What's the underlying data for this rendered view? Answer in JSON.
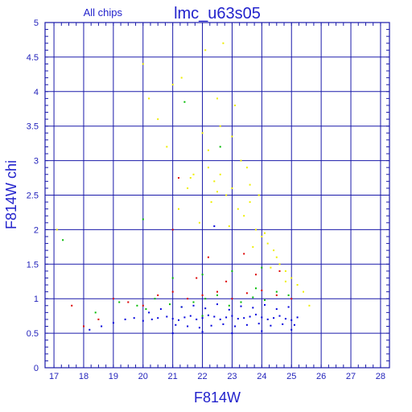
{
  "chart_data": {
    "type": "scatter",
    "title": "lmc_u63s05",
    "subtitle": "All chips",
    "xlabel": "F814W",
    "ylabel": "F814W chi",
    "xlim": [
      16.7,
      28.3
    ],
    "ylim": [
      0,
      5
    ],
    "xticks": [
      "17",
      "18",
      "19",
      "20",
      "21",
      "22",
      "23",
      "24",
      "25",
      "26",
      "27",
      "28"
    ],
    "yticks": [
      "0",
      "0.5",
      "1",
      "1.5",
      "2",
      "2.5",
      "3",
      "3.5",
      "4",
      "4.5",
      "5"
    ],
    "grid": true,
    "colors": {
      "grid": "#1a1aaa",
      "frame": "#1a1aaa",
      "text": "#2222cc",
      "blue": "#0000dd",
      "green": "#00bb00",
      "red": "#dd0000",
      "yellow": "#eeee00"
    },
    "series": [
      {
        "color_key": "blue",
        "x": [
          18.2,
          18.6,
          19.0,
          19.4,
          19.7,
          20.0,
          20.3,
          20.5,
          20.8,
          21.0,
          21.2,
          21.4,
          21.6,
          21.8,
          22.0,
          22.2,
          22.4,
          22.6,
          22.8,
          23.0,
          23.2,
          23.4,
          23.6,
          23.8,
          24.0,
          24.2,
          24.4,
          24.6,
          24.8,
          25.0,
          25.2,
          21.1,
          21.5,
          21.9,
          22.3,
          22.7,
          23.1,
          23.5,
          23.9,
          24.3,
          24.7,
          25.1,
          20.6,
          21.3,
          22.1,
          22.9,
          23.7,
          24.5,
          20.2,
          21.7,
          22.5,
          23.3,
          24.1,
          24.9,
          21.0,
          22.0,
          23.0,
          24.0,
          25.0,
          22.4
        ],
        "y": [
          0.55,
          0.6,
          0.65,
          0.7,
          0.72,
          0.68,
          0.7,
          0.72,
          0.74,
          0.71,
          0.69,
          0.73,
          0.75,
          0.7,
          0.72,
          0.76,
          0.74,
          0.7,
          0.73,
          0.75,
          0.71,
          0.72,
          0.74,
          0.77,
          0.73,
          0.7,
          0.72,
          0.75,
          0.71,
          0.69,
          0.73,
          0.62,
          0.6,
          0.58,
          0.61,
          0.63,
          0.6,
          0.62,
          0.64,
          0.61,
          0.63,
          0.62,
          0.85,
          0.88,
          0.86,
          0.84,
          0.87,
          0.85,
          0.8,
          0.9,
          0.92,
          0.89,
          0.91,
          0.88,
          0.5,
          0.52,
          0.5,
          0.53,
          0.55,
          2.05
        ]
      },
      {
        "color_key": "green",
        "x": [
          17.3,
          18.4,
          19.2,
          19.8,
          20.1,
          20.4,
          20.9,
          21.3,
          21.7,
          22.1,
          22.5,
          22.9,
          23.3,
          23.7,
          24.1,
          24.5,
          24.9,
          20.0,
          21.0,
          22.0,
          23.0,
          24.0,
          21.4,
          22.6,
          23.8,
          22.0
        ],
        "y": [
          1.85,
          0.8,
          0.95,
          0.9,
          0.85,
          1.0,
          0.92,
          0.88,
          0.95,
          1.0,
          1.05,
          0.9,
          0.95,
          1.02,
          0.98,
          1.1,
          1.05,
          2.15,
          1.3,
          1.35,
          1.4,
          1.45,
          3.85,
          3.2,
          1.15,
          0.75
        ]
      },
      {
        "color_key": "red",
        "x": [
          17.6,
          18.0,
          18.5,
          19.0,
          19.5,
          20.0,
          20.5,
          21.0,
          21.5,
          22.0,
          22.5,
          23.0,
          23.5,
          24.0,
          24.5,
          25.0,
          21.0,
          21.2,
          22.2,
          23.4,
          24.6,
          21.8,
          22.8,
          23.8
        ],
        "y": [
          0.9,
          0.6,
          0.7,
          1.0,
          0.95,
          0.9,
          1.05,
          1.1,
          1.0,
          1.05,
          1.1,
          1.0,
          1.08,
          1.12,
          1.05,
          1.0,
          2.0,
          2.75,
          1.6,
          1.65,
          1.4,
          1.3,
          1.25,
          1.35
        ]
      },
      {
        "color_key": "yellow",
        "x": [
          17.1,
          20.0,
          20.2,
          20.5,
          20.8,
          21.0,
          21.3,
          21.5,
          21.7,
          22.0,
          22.2,
          22.4,
          22.5,
          22.6,
          22.8,
          23.0,
          23.2,
          23.4,
          23.6,
          23.8,
          24.0,
          24.2,
          24.4,
          24.6,
          24.8,
          25.0,
          25.2,
          22.1,
          22.7,
          23.3,
          21.9,
          22.3,
          23.1,
          23.9,
          24.5,
          22.6,
          23.5,
          24.1,
          21.2,
          22.9,
          23.7,
          22.5,
          24.3,
          25.4,
          25.6,
          21.6,
          22.2,
          23.0,
          23.6,
          24.8
        ],
        "y": [
          2.0,
          4.4,
          3.9,
          3.6,
          3.2,
          4.1,
          4.2,
          2.6,
          2.8,
          3.4,
          2.9,
          2.7,
          3.9,
          2.8,
          2.5,
          2.6,
          2.3,
          2.2,
          2.4,
          2.0,
          1.9,
          1.8,
          1.7,
          1.5,
          1.4,
          1.3,
          1.2,
          4.6,
          4.7,
          3.0,
          2.1,
          2.4,
          3.8,
          2.5,
          1.6,
          3.5,
          2.9,
          1.95,
          2.3,
          2.05,
          1.75,
          2.55,
          1.45,
          1.1,
          0.9,
          2.75,
          3.15,
          3.35,
          2.65,
          1.25
        ]
      }
    ]
  }
}
